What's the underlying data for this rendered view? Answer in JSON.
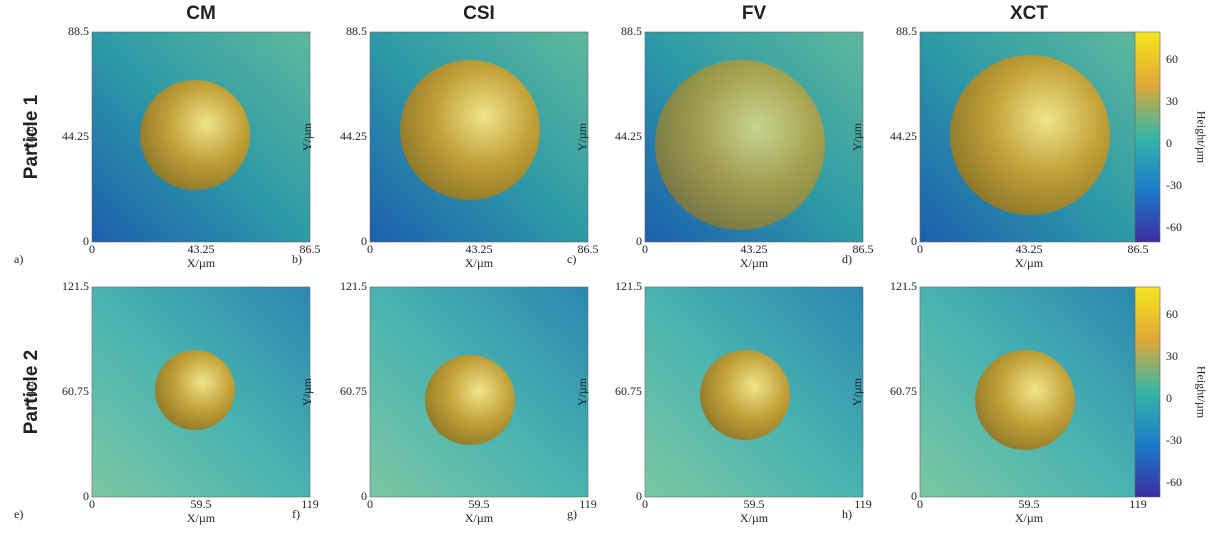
{
  "columns": [
    "CM",
    "CSI",
    "FV",
    "XCT"
  ],
  "rows": [
    {
      "label": "Particle 1",
      "xticks": [
        "0",
        "43.25",
        "86.5"
      ],
      "yticks": [
        "0",
        "44.25",
        "88.5"
      ]
    },
    {
      "label": "Particle 2",
      "xticks": [
        "0",
        "59.5",
        "119"
      ],
      "yticks": [
        "0",
        "60.75",
        "121.5"
      ]
    }
  ],
  "panels": [
    "a)",
    "b)",
    "c)",
    "d)",
    "e)",
    "f)",
    "g)",
    "h)"
  ],
  "x_label": "X/µm",
  "y_label": "Y/µm",
  "colorbar": {
    "label": "Height/µm",
    "ticks": [
      "60",
      "30",
      "0",
      "-30",
      "-60"
    ]
  }
}
